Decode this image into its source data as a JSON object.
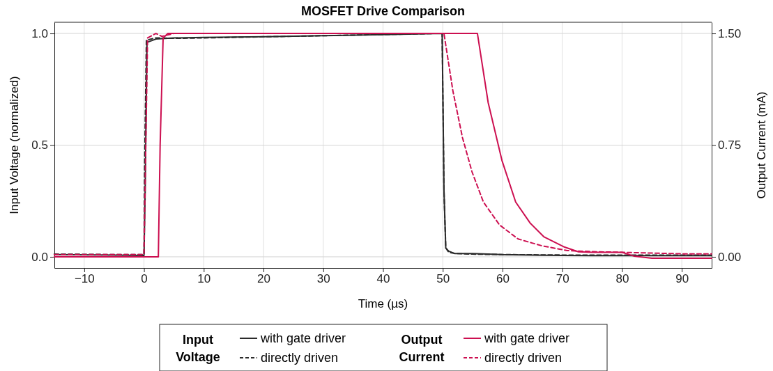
{
  "chart_data": {
    "type": "line",
    "title": "MOSFET Drive Comparison",
    "xlabel": "Time (µs)",
    "ylabel": "Input Voltage (normalized)",
    "y2label": "Output Current (mA)",
    "xlim": [
      -15,
      95
    ],
    "xticks": [
      -10,
      0,
      10,
      20,
      30,
      40,
      50,
      60,
      70,
      80,
      90
    ],
    "ylim": [
      -0.05,
      1.05
    ],
    "yticks": [
      {
        "value": 0,
        "label": "0.0"
      },
      {
        "value": 0.5,
        "label": "0.5"
      },
      {
        "value": 1,
        "label": "1.0"
      }
    ],
    "y2lim": [
      -0.075,
      1.575
    ],
    "y2ticks": [
      {
        "value": 0,
        "label": "0.00"
      },
      {
        "value": 0.75,
        "label": "0.75"
      },
      {
        "value": 1.5,
        "label": "1.50"
      }
    ],
    "grid": true,
    "legend": "bottom",
    "annotations": [
      "Input Voltage",
      "Output Current"
    ],
    "series": [
      {
        "name": "with gate driver",
        "color": "#2b2b2b",
        "line_style": "solid",
        "x": [
          -15,
          -5,
          0,
          0.2,
          0.5,
          2,
          5,
          10,
          20,
          30,
          40,
          49.9,
          50.2,
          50.5,
          51,
          52,
          55,
          60,
          65,
          70,
          75,
          80,
          85,
          90,
          95
        ],
        "values": [
          0.01,
          0.008,
          0.006,
          0.3,
          0.96,
          0.975,
          0.98,
          0.982,
          0.985,
          0.99,
          0.995,
          1.0,
          0.3,
          0.04,
          0.025,
          0.015,
          0.015,
          0.01,
          0.008,
          0.006,
          0.005,
          0.005,
          0.005,
          0.005,
          0.005
        ]
      },
      {
        "name": "directly driven",
        "color": "#2b2b2b",
        "line_style": "dashed",
        "x": [
          -15,
          -5,
          0,
          0.1,
          0.4,
          2,
          5,
          10,
          20,
          30,
          40,
          49,
          49.9,
          50.2,
          50.5,
          51,
          52,
          55,
          60,
          65,
          70,
          75,
          80,
          85,
          90,
          95
        ],
        "values": [
          0.012,
          0.01,
          0.01,
          0.4,
          0.97,
          0.98,
          0.978,
          0.98,
          0.985,
          0.99,
          0.995,
          1.0,
          1.0,
          0.3,
          0.04,
          0.02,
          0.015,
          0.012,
          0.01,
          0.009,
          0.008,
          0.008,
          0.008,
          0.008,
          0.008,
          0.008
        ]
      },
      {
        "name": "with gate driver",
        "color": "#cc0f50",
        "line_style": "solid",
        "axis": "y2",
        "x": [
          -15,
          0,
          2.4,
          2.7,
          3.2,
          4,
          10,
          20,
          30,
          40,
          50,
          55.8,
          57.6,
          59.9,
          62.2,
          64.6,
          66.9,
          70.4,
          72.7,
          75,
          80,
          82,
          85,
          90,
          95
        ],
        "values": [
          0,
          0,
          0,
          0.75,
          1.47,
          1.5,
          1.5,
          1.5,
          1.5,
          1.5,
          1.5,
          1.5,
          1.035,
          0.648,
          0.368,
          0.228,
          0.135,
          0.065,
          0.034,
          0.03,
          0.03,
          0.005,
          -0.01,
          -0.01,
          -0.01
        ]
      },
      {
        "name": "directly driven",
        "color": "#cc0f50",
        "line_style": "dashed",
        "axis": "y2",
        "x": [
          -15,
          -5,
          0,
          0.3,
          0.6,
          2,
          3,
          5,
          10,
          20,
          30,
          40,
          50,
          50.2,
          51.7,
          53.3,
          54.9,
          56.8,
          59.5,
          62.6,
          66.5,
          70.8,
          75,
          80,
          85,
          90,
          95
        ],
        "values": [
          0.015,
          0.015,
          0.015,
          0.75,
          1.47,
          1.5,
          1.48,
          1.5,
          1.5,
          1.5,
          1.5,
          1.5,
          1.5,
          1.5,
          1.113,
          0.8,
          0.57,
          0.368,
          0.214,
          0.12,
          0.075,
          0.042,
          0.035,
          0.03,
          0.025,
          0.02,
          0.02
        ]
      }
    ]
  }
}
